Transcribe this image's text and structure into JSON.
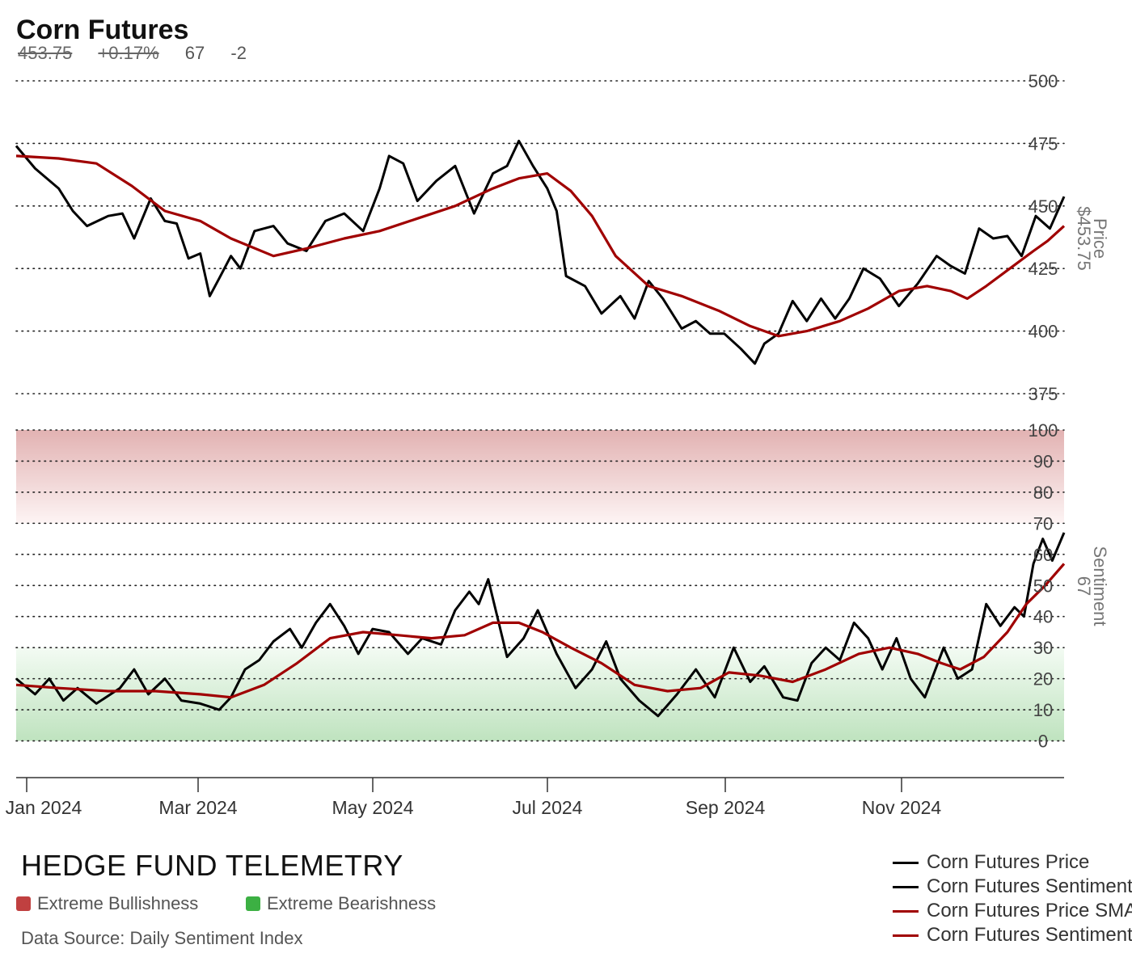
{
  "header": {
    "title": "Corn Futures",
    "price": "453.75",
    "price_change": "+0.17%",
    "sentiment": "67",
    "sentiment_change": "-2"
  },
  "colors": {
    "price_line": "#000000",
    "sma_line": "#a00000",
    "extreme_bullish": "#c04040",
    "extreme_bearish": "#3cb043"
  },
  "footer": {
    "brand": "HEDGE FUND TELEMETRY",
    "bullish_label": "Extreme Bullishness",
    "bearish_label": "Extreme Bearishness",
    "source": "Data Source: Daily Sentiment Index"
  },
  "legend": [
    {
      "label": "Corn Futures Price",
      "color": "#000000"
    },
    {
      "label": "Corn Futures Sentiment",
      "color": "#000000"
    },
    {
      "label": "Corn Futures Price SMA",
      "color": "#a00000"
    },
    {
      "label": "Corn Futures Sentiment SMA",
      "color": "#a00000"
    }
  ],
  "chart_data": {
    "type": "line",
    "x_ticks": [
      "Jan 2024",
      "Mar 2024",
      "May 2024",
      "Jul 2024",
      "Sep 2024",
      "Nov 2024"
    ],
    "panels": [
      {
        "name": "price",
        "axis_label": "Price",
        "axis_value": "$453.75",
        "y_ticks": [
          375,
          400,
          425,
          450,
          475,
          500
        ],
        "ylim": [
          375,
          500
        ],
        "series": [
          {
            "name": "Corn Futures Price",
            "color": "#000000",
            "points": [
              [
                "2024-01-02",
                474
              ],
              [
                "2024-01-10",
                465
              ],
              [
                "2024-01-20",
                457
              ],
              [
                "2024-01-26",
                448
              ],
              [
                "2024-02-01",
                442
              ],
              [
                "2024-02-10",
                446
              ],
              [
                "2024-02-16",
                447
              ],
              [
                "2024-02-21",
                437
              ],
              [
                "2024-02-28",
                453
              ],
              [
                "2024-03-05",
                444
              ],
              [
                "2024-03-10",
                443
              ],
              [
                "2024-03-15",
                429
              ],
              [
                "2024-03-20",
                431
              ],
              [
                "2024-03-24",
                414
              ],
              [
                "2024-03-28",
                421
              ],
              [
                "2024-04-02",
                430
              ],
              [
                "2024-04-06",
                425
              ],
              [
                "2024-04-12",
                440
              ],
              [
                "2024-04-20",
                442
              ],
              [
                "2024-04-26",
                435
              ],
              [
                "2024-05-04",
                432
              ],
              [
                "2024-05-12",
                444
              ],
              [
                "2024-05-20",
                447
              ],
              [
                "2024-05-28",
                440
              ],
              [
                "2024-06-04",
                457
              ],
              [
                "2024-06-08",
                470
              ],
              [
                "2024-06-14",
                467
              ],
              [
                "2024-06-20",
                452
              ],
              [
                "2024-06-28",
                460
              ],
              [
                "2024-07-06",
                466
              ],
              [
                "2024-07-14",
                447
              ],
              [
                "2024-07-22",
                463
              ],
              [
                "2024-07-28",
                466
              ],
              [
                "2024-08-02",
                476
              ],
              [
                "2024-08-08",
                466
              ],
              [
                "2024-08-14",
                457
              ],
              [
                "2024-08-18",
                448
              ],
              [
                "2024-08-22",
                422
              ],
              [
                "2024-08-30",
                418
              ],
              [
                "2024-09-06",
                407
              ],
              [
                "2024-09-14",
                414
              ],
              [
                "2024-09-20",
                405
              ],
              [
                "2024-09-26",
                420
              ],
              [
                "2024-10-02",
                413
              ],
              [
                "2024-10-10",
                401
              ],
              [
                "2024-10-16",
                404
              ],
              [
                "2024-10-22",
                399
              ],
              [
                "2024-10-28",
                399
              ],
              [
                "2024-11-04",
                393
              ],
              [
                "2024-11-10",
                387
              ],
              [
                "2024-11-14",
                395
              ],
              [
                "2024-11-20",
                399
              ],
              [
                "2024-11-26",
                412
              ],
              [
                "2024-12-02",
                404
              ],
              [
                "2024-12-08",
                413
              ],
              [
                "2024-12-14",
                405
              ],
              [
                "2024-12-20",
                413
              ],
              [
                "2024-12-26",
                425
              ],
              [
                "2025-01-02",
                421
              ],
              [
                "2025-01-10",
                410
              ],
              [
                "2025-01-18",
                419
              ],
              [
                "2025-01-26",
                430
              ],
              [
                "2025-02-01",
                426
              ],
              [
                "2025-02-07",
                423
              ],
              [
                "2025-02-13",
                441
              ],
              [
                "2025-02-19",
                437
              ],
              [
                "2025-02-25",
                438
              ],
              [
                "2025-03-03",
                430
              ],
              [
                "2025-03-09",
                446
              ],
              [
                "2025-03-15",
                441
              ],
              [
                "2025-03-21",
                453.75
              ]
            ]
          },
          {
            "name": "Corn Futures Price SMA",
            "color": "#a00000",
            "points": [
              [
                "2024-01-02",
                470
              ],
              [
                "2024-01-20",
                469
              ],
              [
                "2024-02-05",
                467
              ],
              [
                "2024-02-20",
                458
              ],
              [
                "2024-03-05",
                448
              ],
              [
                "2024-03-20",
                444
              ],
              [
                "2024-04-02",
                437
              ],
              [
                "2024-04-20",
                430
              ],
              [
                "2024-05-04",
                433
              ],
              [
                "2024-05-20",
                437
              ],
              [
                "2024-06-04",
                440
              ],
              [
                "2024-06-20",
                445
              ],
              [
                "2024-07-06",
                450
              ],
              [
                "2024-07-22",
                457
              ],
              [
                "2024-08-02",
                461
              ],
              [
                "2024-08-14",
                463
              ],
              [
                "2024-08-24",
                456
              ],
              [
                "2024-09-02",
                446
              ],
              [
                "2024-09-12",
                430
              ],
              [
                "2024-09-26",
                418
              ],
              [
                "2024-10-10",
                414
              ],
              [
                "2024-10-26",
                408
              ],
              [
                "2024-11-08",
                402
              ],
              [
                "2024-11-20",
                398
              ],
              [
                "2024-12-02",
                400
              ],
              [
                "2024-12-16",
                404
              ],
              [
                "2024-12-28",
                409
              ],
              [
                "2025-01-10",
                416
              ],
              [
                "2025-01-22",
                418
              ],
              [
                "2025-02-01",
                416
              ],
              [
                "2025-02-08",
                413
              ],
              [
                "2025-02-16",
                418
              ],
              [
                "2025-02-26",
                425
              ],
              [
                "2025-03-08",
                432
              ],
              [
                "2025-03-14",
                436
              ],
              [
                "2025-03-21",
                442
              ]
            ]
          }
        ]
      },
      {
        "name": "sentiment",
        "axis_label": "Sentiment",
        "axis_value": "67",
        "y_ticks": [
          0,
          10,
          20,
          30,
          40,
          50,
          60,
          70,
          80,
          90,
          100
        ],
        "ylim": [
          -10,
          100
        ],
        "extreme_bullish_zone": [
          70,
          100
        ],
        "extreme_bearish_zone": [
          0,
          30
        ],
        "series": [
          {
            "name": "Corn Futures Sentiment",
            "color": "#000000",
            "points": [
              [
                "2024-01-02",
                20
              ],
              [
                "2024-01-10",
                15
              ],
              [
                "2024-01-16",
                20
              ],
              [
                "2024-01-22",
                13
              ],
              [
                "2024-01-28",
                17
              ],
              [
                "2024-02-05",
                12
              ],
              [
                "2024-02-15",
                17
              ],
              [
                "2024-02-21",
                23
              ],
              [
                "2024-02-27",
                15
              ],
              [
                "2024-03-05",
                20
              ],
              [
                "2024-03-12",
                13
              ],
              [
                "2024-03-20",
                12
              ],
              [
                "2024-03-28",
                10
              ],
              [
                "2024-04-02",
                14
              ],
              [
                "2024-04-08",
                23
              ],
              [
                "2024-04-14",
                26
              ],
              [
                "2024-04-20",
                32
              ],
              [
                "2024-04-27",
                36
              ],
              [
                "2024-05-02",
                30
              ],
              [
                "2024-05-08",
                38
              ],
              [
                "2024-05-14",
                44
              ],
              [
                "2024-05-20",
                37
              ],
              [
                "2024-05-26",
                28
              ],
              [
                "2024-06-01",
                36
              ],
              [
                "2024-06-08",
                35
              ],
              [
                "2024-06-16",
                28
              ],
              [
                "2024-06-22",
                33
              ],
              [
                "2024-06-30",
                31
              ],
              [
                "2024-07-06",
                42
              ],
              [
                "2024-07-12",
                48
              ],
              [
                "2024-07-16",
                44
              ],
              [
                "2024-07-20",
                52
              ],
              [
                "2024-07-28",
                27
              ],
              [
                "2024-08-04",
                33
              ],
              [
                "2024-08-10",
                42
              ],
              [
                "2024-08-18",
                28
              ],
              [
                "2024-08-26",
                17
              ],
              [
                "2024-09-02",
                23
              ],
              [
                "2024-09-08",
                32
              ],
              [
                "2024-09-14",
                20
              ],
              [
                "2024-09-22",
                13
              ],
              [
                "2024-09-30",
                8
              ],
              [
                "2024-10-08",
                15
              ],
              [
                "2024-10-16",
                23
              ],
              [
                "2024-10-24",
                14
              ],
              [
                "2024-11-01",
                30
              ],
              [
                "2024-11-08",
                19
              ],
              [
                "2024-11-14",
                24
              ],
              [
                "2024-11-22",
                14
              ],
              [
                "2024-11-28",
                13
              ],
              [
                "2024-12-04",
                25
              ],
              [
                "2024-12-10",
                30
              ],
              [
                "2024-12-16",
                26
              ],
              [
                "2024-12-22",
                38
              ],
              [
                "2024-12-28",
                33
              ],
              [
                "2025-01-03",
                23
              ],
              [
                "2025-01-09",
                33
              ],
              [
                "2025-01-15",
                20
              ],
              [
                "2025-01-21",
                14
              ],
              [
                "2025-01-29",
                30
              ],
              [
                "2025-02-04",
                20
              ],
              [
                "2025-02-10",
                23
              ],
              [
                "2025-02-16",
                44
              ],
              [
                "2025-02-22",
                37
              ],
              [
                "2025-02-28",
                43
              ],
              [
                "2025-03-04",
                40
              ],
              [
                "2025-03-08",
                57
              ],
              [
                "2025-03-12",
                65
              ],
              [
                "2025-03-16",
                58
              ],
              [
                "2025-03-21",
                67
              ]
            ]
          },
          {
            "name": "Corn Futures Sentiment SMA",
            "color": "#a00000",
            "points": [
              [
                "2024-01-02",
                18
              ],
              [
                "2024-01-20",
                17
              ],
              [
                "2024-02-10",
                16
              ],
              [
                "2024-03-01",
                16
              ],
              [
                "2024-03-20",
                15
              ],
              [
                "2024-04-02",
                14
              ],
              [
                "2024-04-16",
                18
              ],
              [
                "2024-04-30",
                25
              ],
              [
                "2024-05-14",
                33
              ],
              [
                "2024-05-28",
                35
              ],
              [
                "2024-06-12",
                34
              ],
              [
                "2024-06-26",
                33
              ],
              [
                "2024-07-10",
                34
              ],
              [
                "2024-07-22",
                38
              ],
              [
                "2024-08-02",
                38
              ],
              [
                "2024-08-12",
                35
              ],
              [
                "2024-08-24",
                30
              ],
              [
                "2024-09-06",
                25
              ],
              [
                "2024-09-20",
                18
              ],
              [
                "2024-10-04",
                16
              ],
              [
                "2024-10-18",
                17
              ],
              [
                "2024-10-30",
                22
              ],
              [
                "2024-11-12",
                21
              ],
              [
                "2024-11-26",
                19
              ],
              [
                "2024-12-10",
                23
              ],
              [
                "2024-12-24",
                28
              ],
              [
                "2025-01-06",
                30
              ],
              [
                "2025-01-18",
                28
              ],
              [
                "2025-01-28",
                25
              ],
              [
                "2025-02-05",
                23
              ],
              [
                "2025-02-15",
                27
              ],
              [
                "2025-02-25",
                35
              ],
              [
                "2025-03-05",
                44
              ],
              [
                "2025-03-13",
                50
              ],
              [
                "2025-03-21",
                57
              ]
            ]
          }
        ]
      }
    ]
  }
}
